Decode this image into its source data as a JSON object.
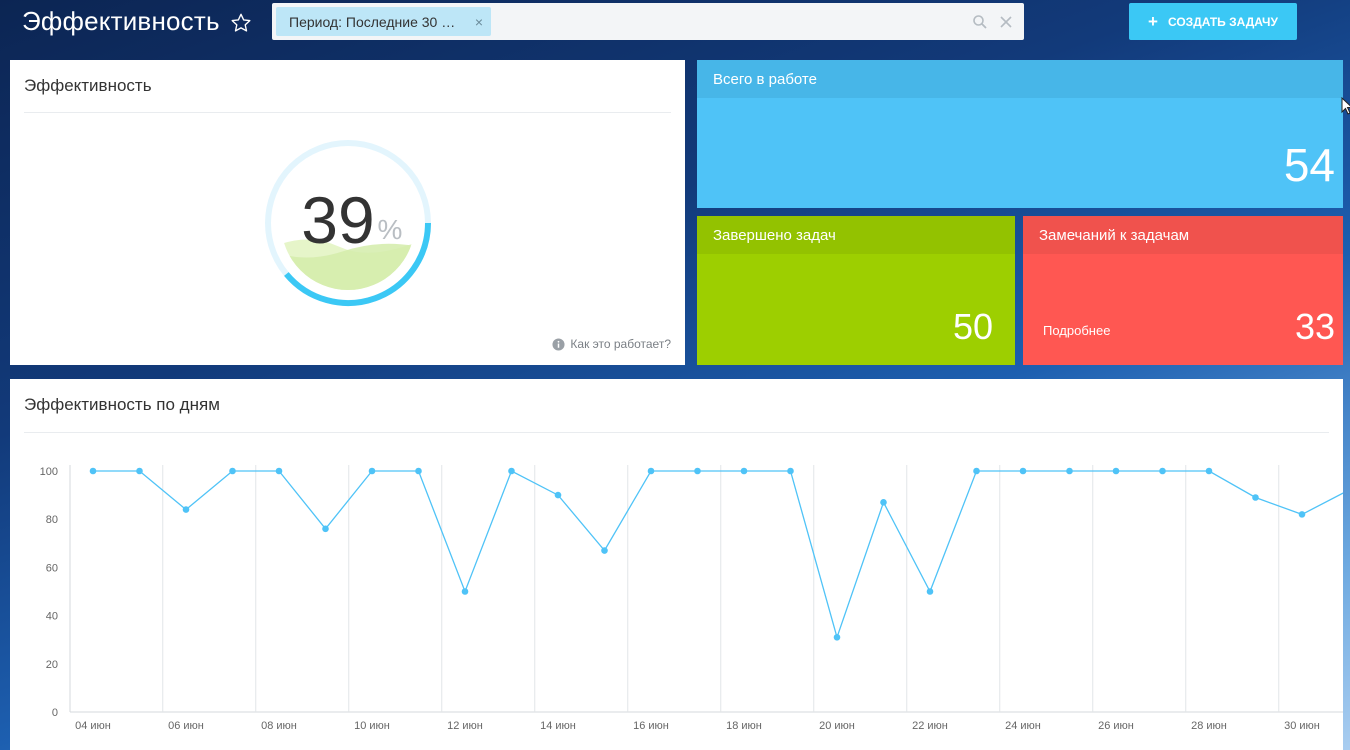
{
  "header": {
    "title": "Эффективность",
    "filter_chip": "Период: Последние 30 …",
    "filter_input_value": "",
    "create_button": "СОЗДАТЬ ЗАДАЧУ"
  },
  "efficiency_card": {
    "title": "Эффективность",
    "gauge": {
      "value": "39",
      "unit": "%",
      "fraction": 0.39
    },
    "help_link": "Как это работает?"
  },
  "tiles": {
    "total": {
      "label": "Всего в работе",
      "value": "54",
      "color": "#4fc3f7"
    },
    "done": {
      "label": "Завершено задач",
      "value": "50",
      "color": "#9dcf00"
    },
    "remarks": {
      "label": "Замечаний к задачам",
      "value": "33",
      "link": "Подробнее",
      "color": "#ff5752"
    }
  },
  "days_card": {
    "title": "Эффективность по дням"
  },
  "chart_data": {
    "type": "line",
    "color": "#4fc3f7",
    "ylim": [
      0,
      100
    ],
    "yticks": [
      0,
      20,
      40,
      60,
      80,
      100
    ],
    "x_labels": [
      "04 июн",
      "06 июн",
      "08 июн",
      "10 июн",
      "12 июн",
      "14 июн",
      "16 июн",
      "18 июн",
      "20 июн",
      "22 июн",
      "24 июн",
      "26 июн",
      "28 июн",
      "30 июн"
    ],
    "x": [
      "04 июн",
      "05 июн",
      "06 июн",
      "07 июн",
      "08 июн",
      "09 июн",
      "10 июн",
      "11 июн",
      "12 июн",
      "13 июн",
      "14 июн",
      "15 июн",
      "16 июн",
      "17 июн",
      "18 июн",
      "19 июн",
      "20 июн",
      "21 июн",
      "22 июн",
      "23 июн",
      "24 июн",
      "25 июн",
      "26 июн",
      "27 июн",
      "28 июн",
      "29 июн",
      "30 июн",
      "01 июл"
    ],
    "values": [
      100,
      100,
      84,
      100,
      100,
      76,
      100,
      100,
      50,
      100,
      90,
      67,
      100,
      100,
      100,
      100,
      31,
      87,
      50,
      100,
      100,
      100,
      100,
      100,
      100,
      89,
      82,
      92
    ],
    "grid": "vertical"
  }
}
